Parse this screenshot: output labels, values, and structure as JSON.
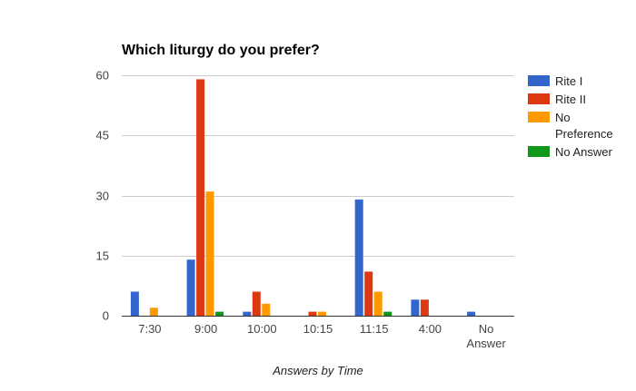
{
  "chart_data": {
    "type": "bar",
    "title": "Which liturgy do you prefer?",
    "xlabel": "Answers by Time",
    "ylabel": "",
    "ylim": [
      0,
      60
    ],
    "yticks": [
      0,
      15,
      30,
      45,
      60
    ],
    "grid": true,
    "legend_position": "right",
    "categories": [
      "7:30",
      "9:00",
      "10:00",
      "10:15",
      "11:15",
      "4:00",
      "No Answer"
    ],
    "series": [
      {
        "name": "Rite I",
        "color": "#3366cc",
        "values": [
          6,
          14,
          1,
          0,
          29,
          4,
          1
        ]
      },
      {
        "name": "Rite II",
        "color": "#dc3912",
        "values": [
          0,
          59,
          6,
          1,
          11,
          4,
          0
        ]
      },
      {
        "name": "No Preference",
        "color": "#ff9900",
        "values": [
          2,
          31,
          3,
          1,
          6,
          0,
          0
        ]
      },
      {
        "name": "No Answer",
        "color": "#109618",
        "values": [
          0,
          1,
          0,
          0,
          1,
          0,
          0
        ]
      }
    ]
  }
}
